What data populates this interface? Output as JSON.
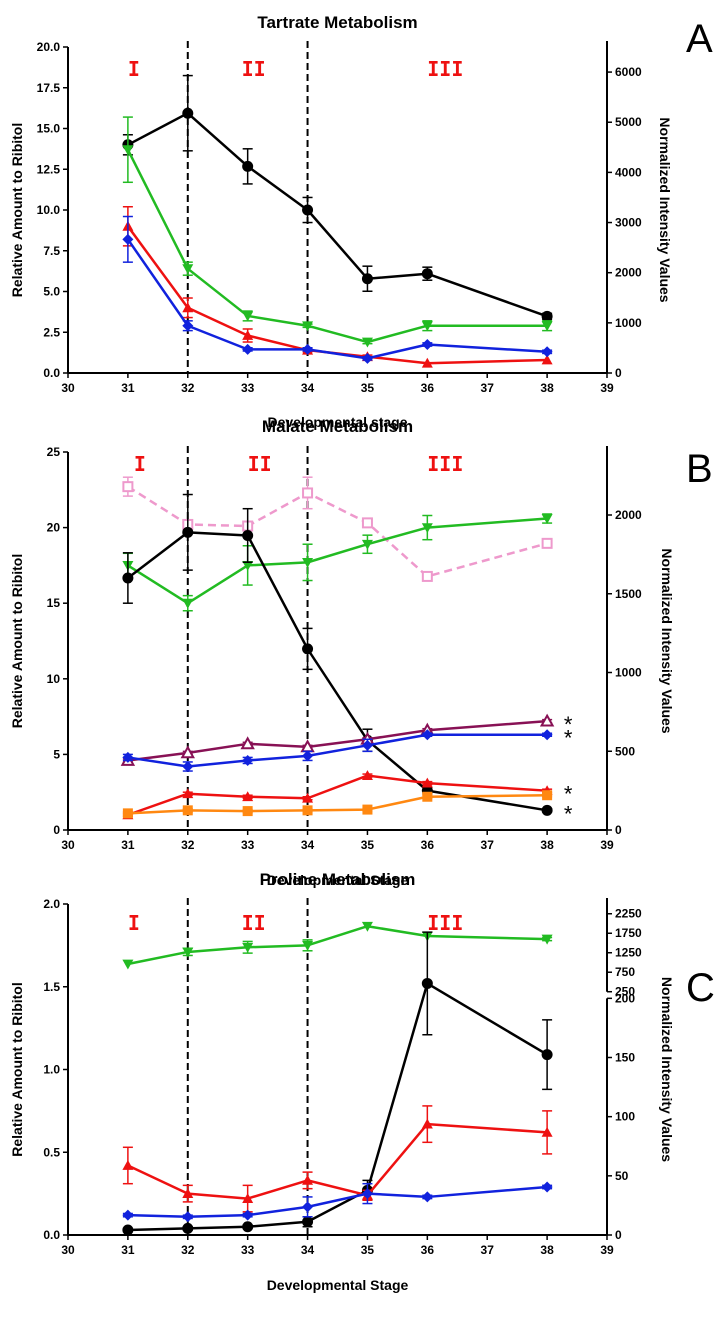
{
  "chart_data": [
    {
      "panel_letter": "A",
      "type": "line",
      "title": "Tartrate Metabolism",
      "xlabel": "Developmental stage",
      "ylabel_left": "Relative Amount to Ribitol",
      "ylabel_right": "Normalized Intensity Values",
      "xlim": [
        30,
        39
      ],
      "ylim_left": [
        0,
        20
      ],
      "ylim_right": [
        0,
        6500
      ],
      "x_ticks": [
        "30",
        "31",
        "32",
        "33",
        "34",
        "35",
        "36",
        "37",
        "38",
        "39"
      ],
      "y_ticks_left": [
        "0.0",
        "2.5",
        "5.0",
        "7.5",
        "10.0",
        "12.5",
        "15.0",
        "17.5",
        "20.0"
      ],
      "y_ticks_right": [
        "0",
        "1000",
        "2000",
        "3000",
        "4000",
        "5000",
        "6000"
      ],
      "stage_dividers": [
        32,
        34
      ],
      "stage_labels": [
        {
          "text": "I",
          "x": 31.1
        },
        {
          "text": "II",
          "x": 33.1
        },
        {
          "text": "III",
          "x": 36.3
        }
      ],
      "stars": [],
      "series": [
        {
          "color": "#000000",
          "marker": "circle",
          "axis": "right",
          "dashed": false,
          "x": [
            31,
            32,
            33,
            34,
            35,
            36,
            38
          ],
          "y": [
            4550,
            5180,
            4120,
            3250,
            1880,
            1980,
            1130
          ],
          "err": [
            200,
            750,
            350,
            250,
            250,
            130,
            60
          ]
        },
        {
          "color": "#22bb22",
          "marker": "tri-down",
          "axis": "left",
          "dashed": false,
          "x": [
            31,
            32,
            33,
            34,
            35,
            36,
            38
          ],
          "y": [
            13.7,
            6.4,
            3.5,
            2.9,
            1.9,
            2.9,
            2.9
          ],
          "err": [
            2.0,
            0.4,
            0.3,
            0.1,
            0.1,
            0.3,
            0.3
          ]
        },
        {
          "color": "#ee1111",
          "marker": "tri-up",
          "axis": "left",
          "dashed": false,
          "x": [
            31,
            32,
            33,
            34,
            35,
            36,
            38
          ],
          "y": [
            9.0,
            4.0,
            2.3,
            1.4,
            1.0,
            0.6,
            0.8
          ],
          "err": [
            1.2,
            0.6,
            0.4,
            0.1,
            0.1,
            0.05,
            0.05
          ]
        },
        {
          "color": "#1122dd",
          "marker": "diamond",
          "axis": "left",
          "dashed": false,
          "x": [
            31,
            32,
            33,
            34,
            35,
            36,
            38
          ],
          "y": [
            8.2,
            2.9,
            1.45,
            1.45,
            0.9,
            1.75,
            1.3
          ],
          "err": [
            1.4,
            0.3,
            0.1,
            0.1,
            0.1,
            0.1,
            0.1
          ]
        }
      ]
    },
    {
      "panel_letter": "B",
      "type": "line",
      "title": "Malate Metabolism",
      "xlabel": "Developmental Stage",
      "ylabel_left": "Relative Amount to Ribitol",
      "ylabel_right": "Normalized Intensity Values",
      "xlim": [
        30,
        39
      ],
      "ylim_left": [
        0,
        25
      ],
      "ylim_right": [
        0,
        2400
      ],
      "x_ticks": [
        "30",
        "31",
        "32",
        "33",
        "34",
        "35",
        "36",
        "37",
        "38",
        "39"
      ],
      "y_ticks_left": [
        "0",
        "5",
        "10",
        "15",
        "20",
        "25"
      ],
      "y_ticks_right": [
        "0",
        "500",
        "1000",
        "1500",
        "2000"
      ],
      "stage_dividers": [
        32,
        34
      ],
      "stage_labels": [
        {
          "text": "I",
          "x": 31.2
        },
        {
          "text": "II",
          "x": 33.2
        },
        {
          "text": "III",
          "x": 36.3
        }
      ],
      "stars": [
        {
          "text": "*",
          "y": 7.2
        },
        {
          "text": "*",
          "y": 6.3
        },
        {
          "text": "*",
          "y": 2.6
        },
        {
          "text": "*",
          "y": 1.3
        }
      ],
      "series": [
        {
          "color": "#ee99cc",
          "marker": "square-open",
          "axis": "right",
          "dashed": true,
          "x": [
            31,
            32,
            33,
            34,
            35,
            36,
            38
          ],
          "y": [
            2180,
            1940,
            1930,
            2140,
            1950,
            1610,
            1820
          ],
          "err": [
            60,
            20,
            20,
            100,
            20,
            20,
            15
          ]
        },
        {
          "color": "#22bb22",
          "marker": "tri-down",
          "axis": "left",
          "dashed": false,
          "x": [
            31,
            32,
            33,
            34,
            35,
            36,
            38
          ],
          "y": [
            17.5,
            15.0,
            17.5,
            17.7,
            18.9,
            20.0,
            20.6
          ],
          "err": [
            0.8,
            0.5,
            1.3,
            1.2,
            0.6,
            0.8,
            0.3
          ]
        },
        {
          "color": "#000000",
          "marker": "circle",
          "axis": "right",
          "dashed": false,
          "x": [
            31,
            32,
            33,
            34,
            35,
            36,
            38
          ],
          "y": [
            1600,
            1890,
            1870,
            1150,
            570,
            250,
            125
          ],
          "err": [
            160,
            240,
            170,
            130,
            70,
            20,
            10
          ]
        },
        {
          "color": "#881155",
          "marker": "tri-open",
          "axis": "left",
          "dashed": false,
          "x": [
            31,
            32,
            33,
            34,
            35,
            36,
            38
          ],
          "y": [
            4.6,
            5.1,
            5.7,
            5.5,
            6.0,
            6.6,
            7.2
          ],
          "err": [
            0.1,
            0.1,
            0.1,
            0.1,
            0.1,
            0.1,
            0.1
          ]
        },
        {
          "color": "#1122dd",
          "marker": "diamond",
          "axis": "left",
          "dashed": false,
          "x": [
            31,
            32,
            33,
            34,
            35,
            36,
            38
          ],
          "y": [
            4.8,
            4.2,
            4.6,
            4.9,
            5.6,
            6.3,
            6.3
          ],
          "err": [
            0.2,
            0.3,
            0.2,
            0.3,
            0.4,
            0.1,
            0.1
          ]
        },
        {
          "color": "#ee1111",
          "marker": "tri-up",
          "axis": "left",
          "dashed": false,
          "x": [
            31,
            32,
            33,
            34,
            35,
            36,
            38
          ],
          "y": [
            1.0,
            2.4,
            2.2,
            2.1,
            3.6,
            3.1,
            2.6
          ],
          "err": [
            0.1,
            0.1,
            0.1,
            0.1,
            0.1,
            0.1,
            0.1
          ]
        },
        {
          "color": "#ff8811",
          "marker": "square",
          "axis": "left",
          "dashed": false,
          "x": [
            31,
            32,
            33,
            34,
            35,
            36,
            38
          ],
          "y": [
            1.1,
            1.3,
            1.25,
            1.3,
            1.35,
            2.2,
            2.3
          ],
          "err": [
            0.1,
            0.1,
            0.1,
            0.1,
            0.1,
            0.1,
            0.1
          ]
        }
      ]
    },
    {
      "panel_letter": "C",
      "type": "line",
      "title": "Proline Metabolism",
      "xlabel": "Developmental Stage",
      "ylabel_left": "Relative Amount to Ribitol",
      "ylabel_right": "Normalized Intensity Values",
      "xlim": [
        30,
        39
      ],
      "ylim_left": [
        0,
        2.0
      ],
      "broken_right_axis": {
        "lower": {
          "range": [
            0,
            200
          ],
          "fraction": [
            0,
            0.715
          ]
        },
        "upper": {
          "range": [
            250,
            2500
          ],
          "fraction": [
            0.735,
            1.0
          ]
        }
      },
      "x_ticks": [
        "30",
        "31",
        "32",
        "33",
        "34",
        "35",
        "36",
        "37",
        "38",
        "39"
      ],
      "y_ticks_left": [
        "0.0",
        "0.5",
        "1.0",
        "1.5",
        "2.0"
      ],
      "y_ticks_right": [
        "0",
        "50",
        "100",
        "150",
        "200",
        "250",
        "750",
        "1250",
        "1750",
        "2250"
      ],
      "stage_dividers": [
        32,
        34
      ],
      "stage_labels": [
        {
          "text": "I",
          "x": 31.1
        },
        {
          "text": "II",
          "x": 33.1
        },
        {
          "text": "III",
          "x": 36.3
        }
      ],
      "stars": [],
      "series": [
        {
          "color": "#22bb22",
          "marker": "tri-down",
          "axis": "right",
          "dashed": false,
          "x": [
            31,
            32,
            33,
            34,
            35,
            36,
            38
          ],
          "y": [
            960,
            1270,
            1390,
            1440,
            1930,
            1680,
            1600
          ],
          "err": [
            20,
            90,
            150,
            140,
            30,
            20,
            40
          ]
        },
        {
          "color": "#000000",
          "marker": "circle",
          "axis": "left",
          "dashed": false,
          "x": [
            31,
            32,
            33,
            34,
            35,
            36,
            38
          ],
          "y": [
            0.03,
            0.04,
            0.05,
            0.08,
            0.27,
            1.52,
            1.09
          ],
          "err": [
            0.01,
            0.01,
            0.01,
            0.03,
            0.06,
            0.31,
            0.21
          ]
        },
        {
          "color": "#ee1111",
          "marker": "tri-up",
          "axis": "left",
          "dashed": false,
          "x": [
            31,
            32,
            33,
            34,
            35,
            36,
            38
          ],
          "y": [
            0.42,
            0.25,
            0.22,
            0.33,
            0.24,
            0.67,
            0.62
          ],
          "err": [
            0.11,
            0.05,
            0.08,
            0.05,
            0.03,
            0.11,
            0.13
          ]
        },
        {
          "color": "#1122dd",
          "marker": "diamond",
          "axis": "left",
          "dashed": false,
          "x": [
            31,
            32,
            33,
            34,
            35,
            36,
            38
          ],
          "y": [
            0.12,
            0.11,
            0.12,
            0.17,
            0.25,
            0.23,
            0.29
          ],
          "err": [
            0.01,
            0.01,
            0.01,
            0.06,
            0.06,
            0.01,
            0.01
          ]
        }
      ]
    }
  ]
}
